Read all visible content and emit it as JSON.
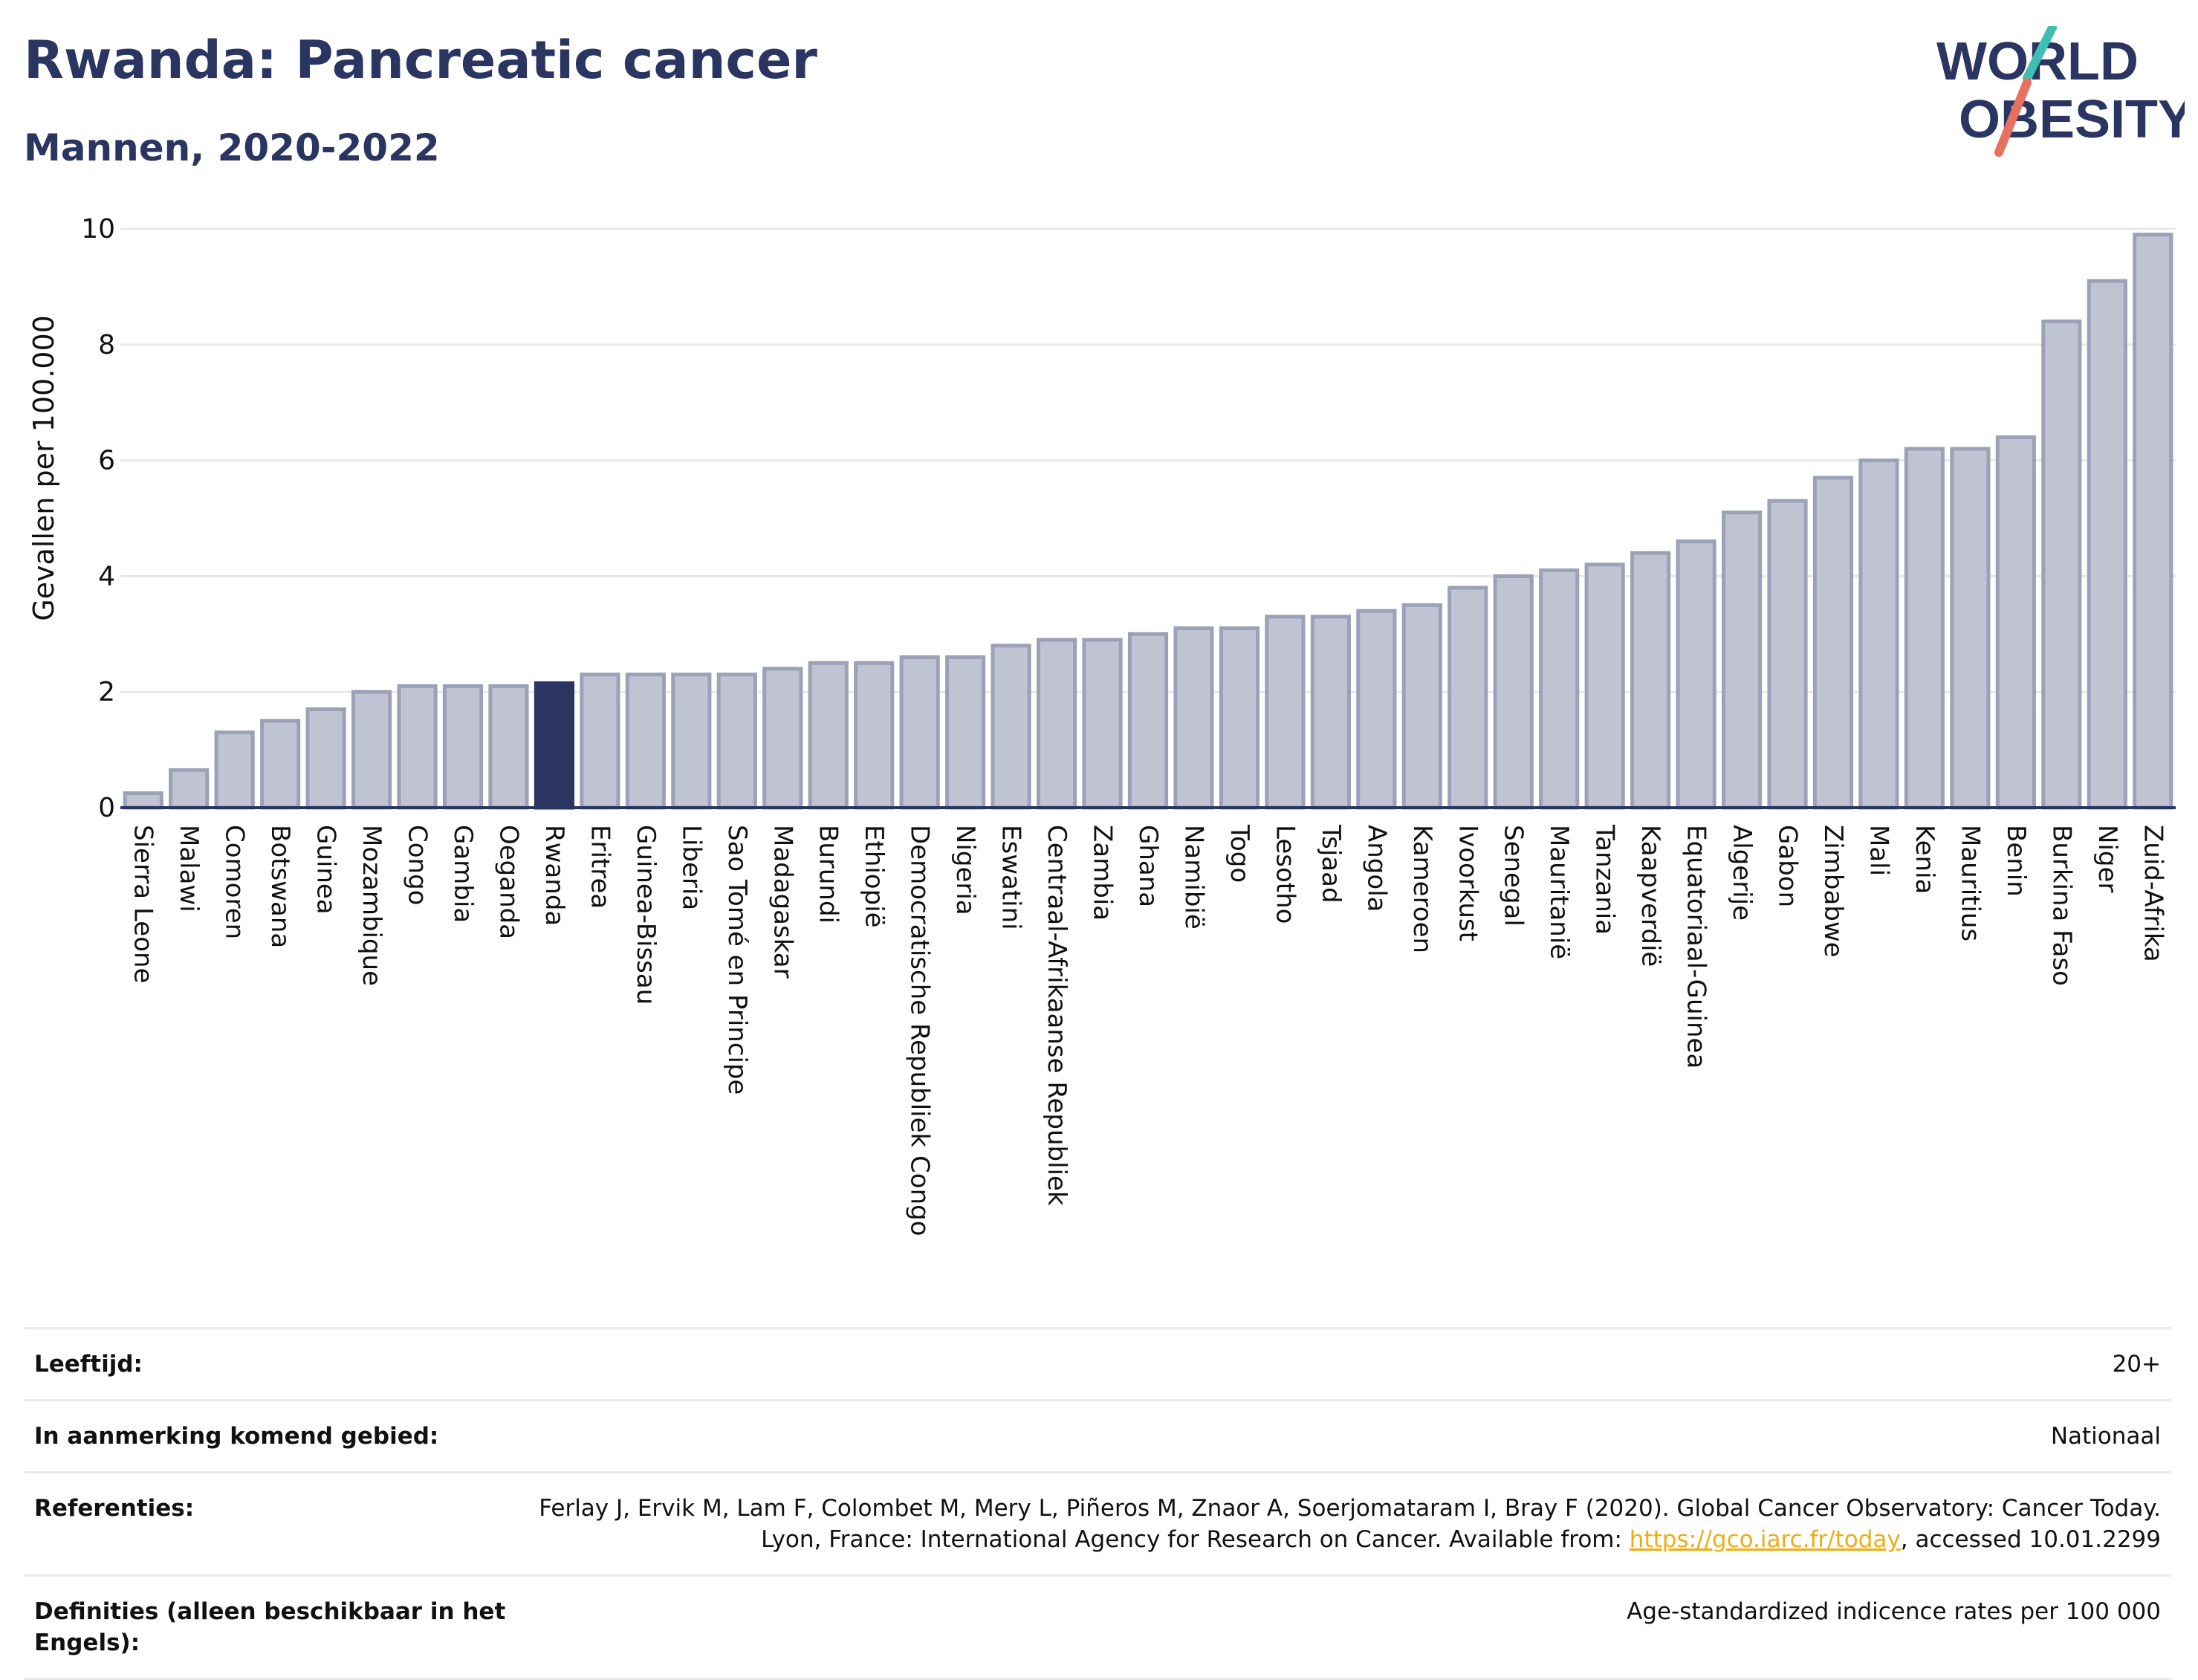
{
  "header": {
    "title": "Rwanda: Pancreatic cancer",
    "subtitle": "Mannen, 2020-2022"
  },
  "logo": {
    "line1": "WORLD",
    "line2": "OBESITY"
  },
  "colors": {
    "title": "#2a3561",
    "bar": "#c0c4d2",
    "bar_stroke": "#9ca1b8",
    "highlight": "#2a3561",
    "link": "#f0ad13",
    "logo_teal": "#3fbfb3",
    "logo_red": "#e8705f"
  },
  "chart_data": {
    "type": "bar",
    "ylabel": "Gevallen per 100.000",
    "ylim": [
      0,
      10
    ],
    "yticks": [
      0,
      2,
      4,
      6,
      8,
      10
    ],
    "grid": true,
    "highlight": "Rwanda",
    "categories": [
      "Sierra Leone",
      "Malawi",
      "Comoren",
      "Botswana",
      "Guinea",
      "Mozambique",
      "Congo",
      "Gambia",
      "Oeganda",
      "Rwanda",
      "Eritrea",
      "Guinea-Bissau",
      "Liberia",
      "Sao Tomé en Principe",
      "Madagaskar",
      "Burundi",
      "Ethiopië",
      "Democratische Republiek Congo",
      "Nigeria",
      "Eswatini",
      "Centraal-Afrikaanse Republiek",
      "Zambia",
      "Ghana",
      "Namibië",
      "Togo",
      "Lesotho",
      "Tsjaad",
      "Angola",
      "Kameroen",
      "Ivoorkust",
      "Senegal",
      "Mauritanië",
      "Tanzania",
      "Kaapverdië",
      "Equatoriaal-Guinea",
      "Algerije",
      "Gabon",
      "Zimbabwe",
      "Mali",
      "Kenia",
      "Mauritius",
      "Benin",
      "Burkina Faso",
      "Niger",
      "Zuid-Afrika"
    ],
    "values": [
      0.25,
      0.65,
      1.3,
      1.5,
      1.7,
      2.0,
      2.1,
      2.1,
      2.1,
      2.15,
      2.3,
      2.3,
      2.3,
      2.3,
      2.4,
      2.5,
      2.5,
      2.6,
      2.6,
      2.8,
      2.9,
      2.9,
      3.0,
      3.1,
      3.1,
      3.3,
      3.3,
      3.4,
      3.5,
      3.8,
      4.0,
      4.1,
      4.2,
      4.4,
      4.6,
      5.1,
      5.3,
      5.7,
      6.0,
      6.2,
      6.2,
      6.4,
      8.4,
      9.1,
      9.9
    ]
  },
  "meta": {
    "age_label": "Leeftijd:",
    "age_value": "20+",
    "area_label": "In aanmerking komend gebied:",
    "area_value": "Nationaal",
    "ref_label": "Referenties:",
    "ref_text_1": "Ferlay J, Ervik M, Lam F, Colombet M, Mery L, Piñeros M, Znaor A, Soerjomataram I, Bray F (2020). Global Cancer Observatory: Cancer Today. Lyon, France: International Agency for Research on Cancer. Available from: ",
    "ref_link": "https://gco.iarc.fr/today",
    "ref_text_2": ", accessed 10.01.2299",
    "def_label": "Definities (alleen beschikbaar in het Engels):",
    "def_value": "Age-standardized indicence rates per 100 000"
  }
}
